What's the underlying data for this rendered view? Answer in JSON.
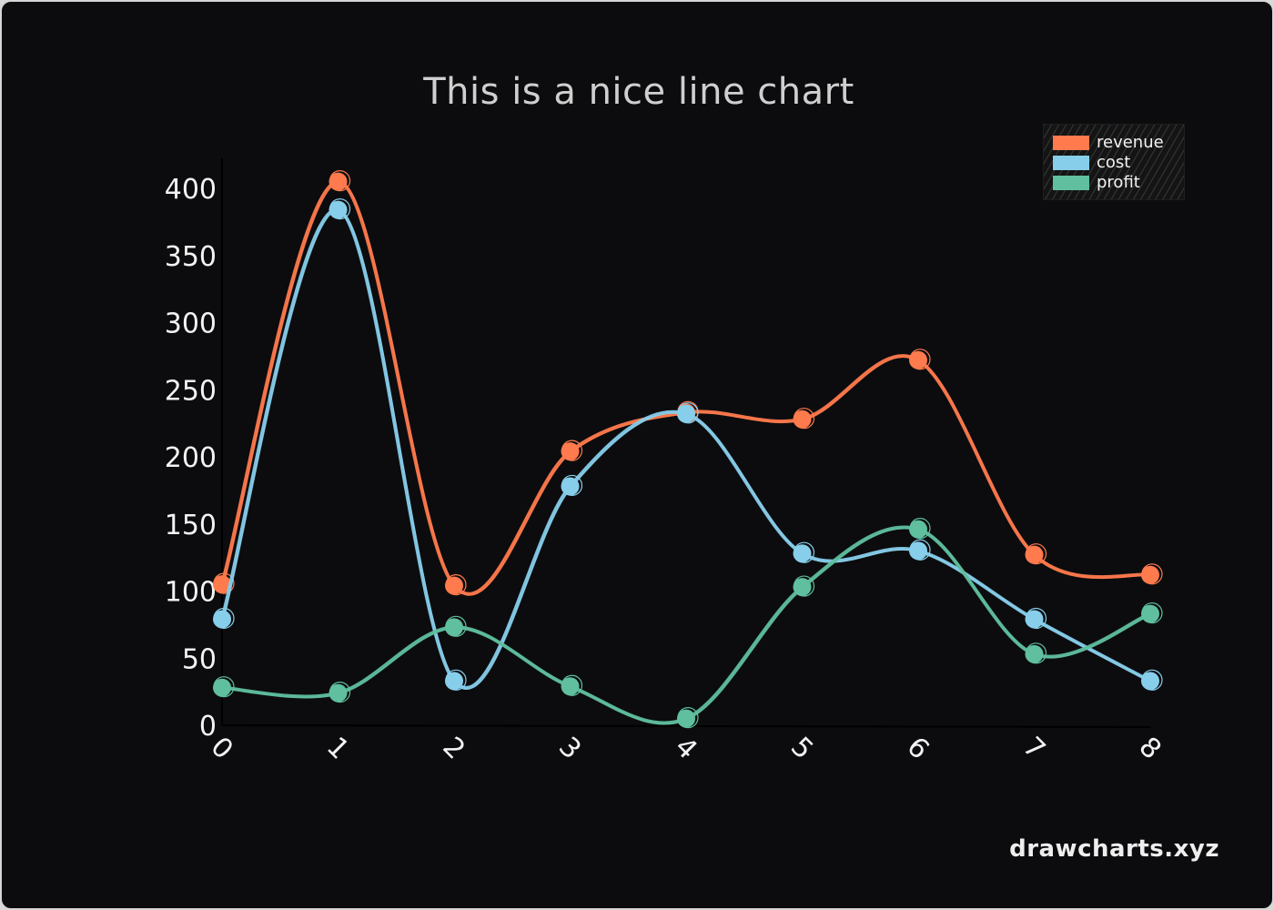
{
  "title": "This is a nice line chart",
  "watermark": "drawcharts.xyz",
  "colors": {
    "background": "#0c0c0e",
    "revenue": "#ff7a4d",
    "cost": "#87ceeb",
    "profit": "#5fbf9e",
    "text": "#f3f3f3"
  },
  "legend": {
    "items": [
      {
        "label": "revenue",
        "color": "#ff7a4d"
      },
      {
        "label": "cost",
        "color": "#87ceeb"
      },
      {
        "label": "profit",
        "color": "#5fbf9e"
      }
    ]
  },
  "chart_data": {
    "type": "line",
    "title": "This is a nice line chart",
    "xlabel": "",
    "ylabel": "",
    "x": [
      0,
      1,
      2,
      3,
      4,
      5,
      6,
      7,
      8
    ],
    "x_tick_labels": [
      "0",
      "1",
      "2",
      "3",
      "4",
      "5",
      "6",
      "7",
      "8"
    ],
    "y_tick_labels": [
      "0",
      "50",
      "100",
      "150",
      "200",
      "250",
      "300",
      "350",
      "400"
    ],
    "ylim": [
      0,
      400
    ],
    "grid": false,
    "legend_position": "top-right",
    "curve": "smooth",
    "series": [
      {
        "name": "revenue",
        "color": "#ff7a4d",
        "values": [
          105,
          405,
          104,
          204,
          233,
          228,
          272,
          127,
          112
        ]
      },
      {
        "name": "cost",
        "color": "#87ceeb",
        "values": [
          79,
          384,
          33,
          178,
          232,
          128,
          130,
          79,
          33
        ]
      },
      {
        "name": "profit",
        "color": "#5fbf9e",
        "values": [
          28,
          24,
          73,
          29,
          5,
          103,
          146,
          53,
          83
        ]
      }
    ]
  }
}
